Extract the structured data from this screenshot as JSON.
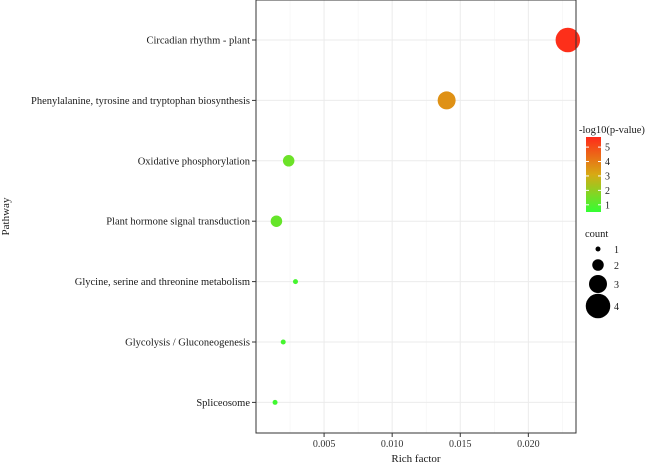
{
  "chart_data": {
    "type": "scatter",
    "xlabel": "Rich factor",
    "ylabel": "Pathway",
    "xlim": [
      0.0,
      0.0235
    ],
    "x_ticks": [
      0.005,
      0.01,
      0.015,
      0.02
    ],
    "x_tick_labels": [
      "0.005",
      "0.010",
      "0.015",
      "0.020"
    ],
    "grid": true,
    "categories": [
      "Circadian rhythm - plant",
      "Phenylalanine, tyrosine and tryptophan biosynthesis",
      "Oxidative phosphorylation",
      "Plant hormone signal transduction",
      "Glycine, serine and threonine metabolism",
      "Glycolysis / Gluconeogenesis",
      "Spliceosome"
    ],
    "points": [
      {
        "pathway": "Circadian rhythm - plant",
        "rich_factor": 0.0229,
        "neg_log10_p": 5.6,
        "count": 4
      },
      {
        "pathway": "Phenylalanine, tyrosine and tryptophan biosynthesis",
        "rich_factor": 0.014,
        "neg_log10_p": 3.6,
        "count": 3
      },
      {
        "pathway": "Oxidative phosphorylation",
        "rich_factor": 0.0024,
        "neg_log10_p": 1.4,
        "count": 2
      },
      {
        "pathway": "Plant hormone signal transduction",
        "rich_factor": 0.0015,
        "neg_log10_p": 1.3,
        "count": 2
      },
      {
        "pathway": "Glycine, serine and threonine metabolism",
        "rich_factor": 0.0029,
        "neg_log10_p": 0.8,
        "count": 1
      },
      {
        "pathway": "Glycolysis / Gluconeogenesis",
        "rich_factor": 0.002,
        "neg_log10_p": 0.8,
        "count": 1
      },
      {
        "pathway": "Spliceosome",
        "rich_factor": 0.0014,
        "neg_log10_p": 0.7,
        "count": 1
      }
    ],
    "color_legend": {
      "title": "-log10(p-value)",
      "min": 0.5,
      "max": 5.7,
      "ticks": [
        1,
        2,
        3,
        4,
        5
      ],
      "low_color": "#33ff33",
      "high_color": "#ff2a1a"
    },
    "size_legend": {
      "title": "count",
      "values": [
        1,
        2,
        3,
        4
      ]
    },
    "colors": {
      "grid": "#ebebeb",
      "panel_border": "#333333"
    }
  }
}
